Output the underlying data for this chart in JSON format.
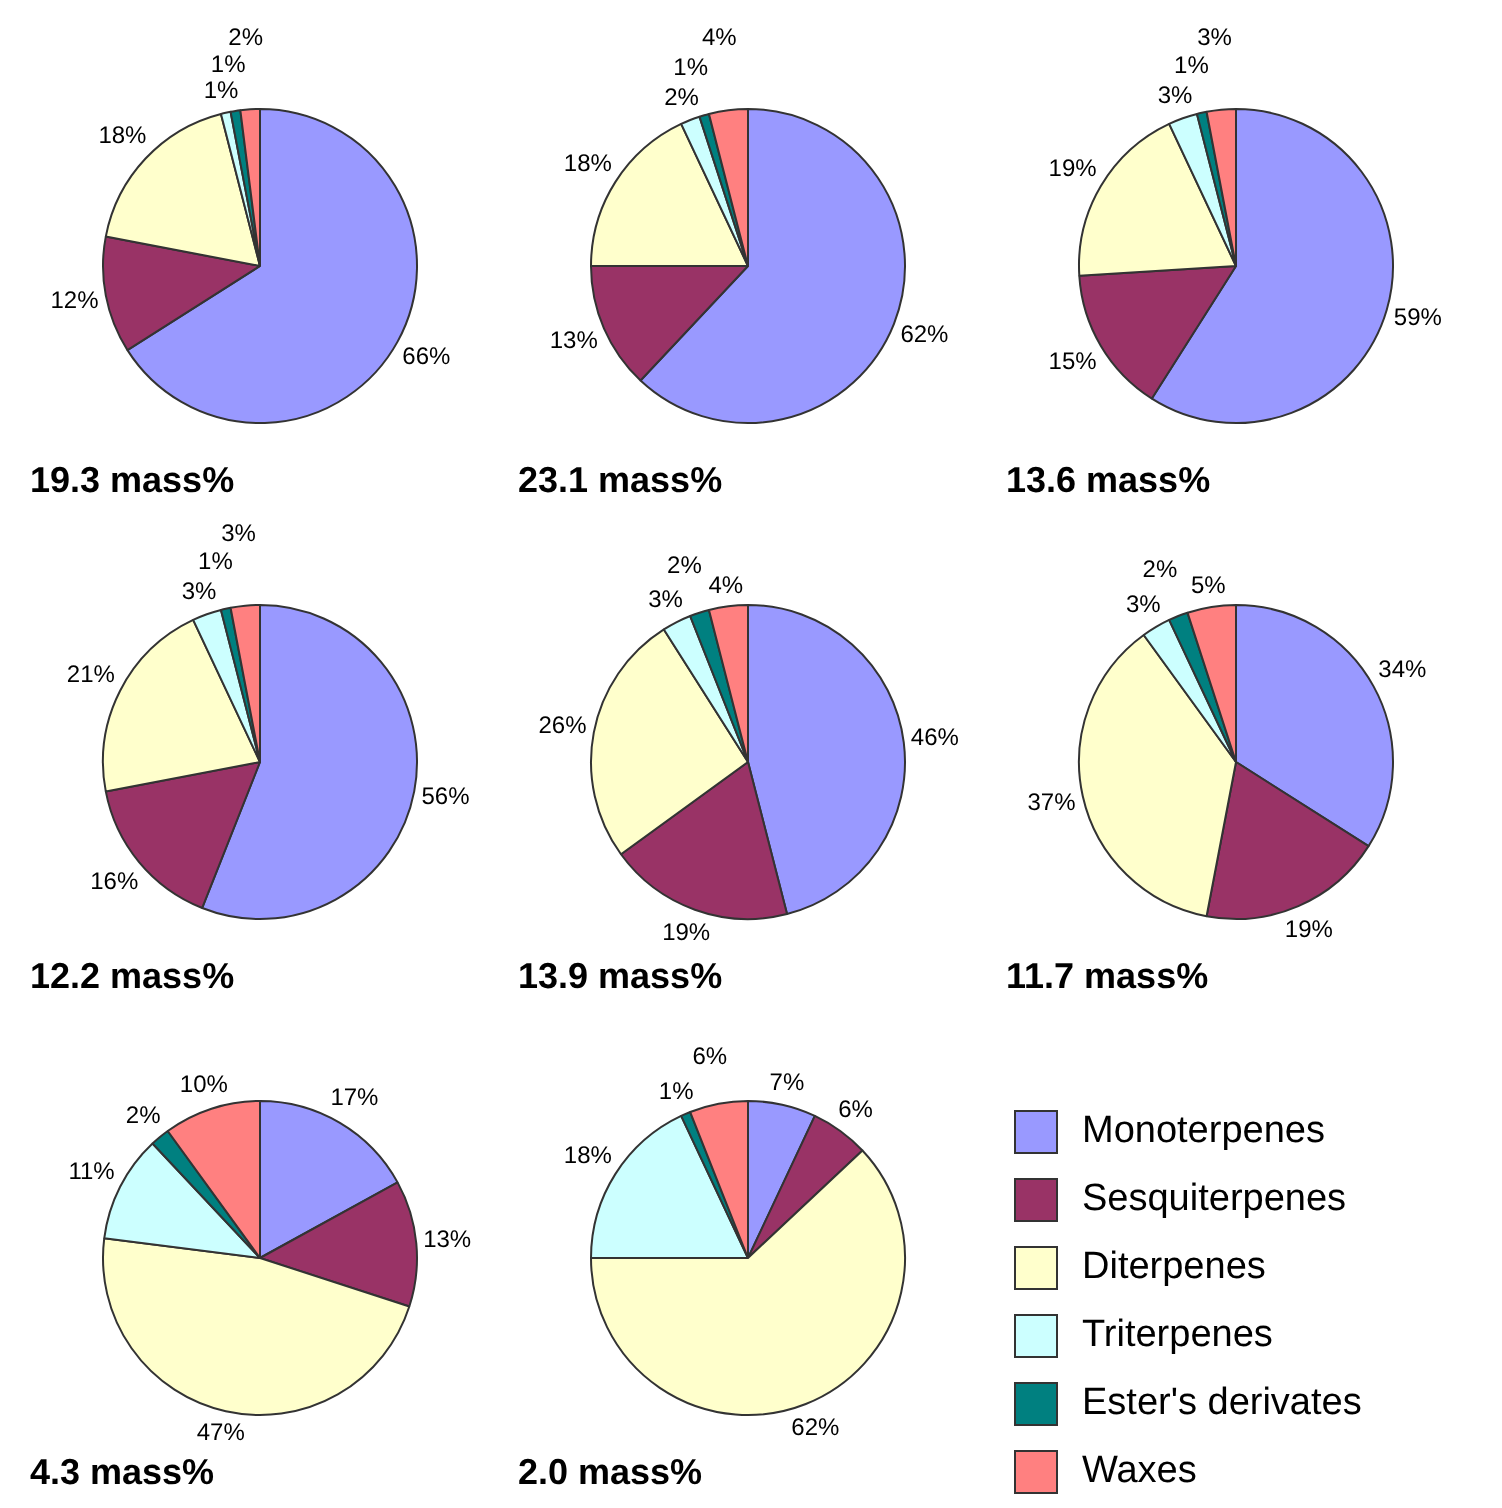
{
  "chart_data": [
    {
      "type": "pie",
      "title": "19.3 mass%",
      "values": [
        66,
        12,
        18,
        1,
        1,
        2
      ],
      "value_labels": [
        "66%",
        "12%",
        "18%",
        "1%",
        "1%",
        "2%"
      ],
      "colors": [
        "#9999ff",
        "#993366",
        "#ffffcc",
        "#ccffff",
        "#008080",
        "#ff8080"
      ]
    },
    {
      "type": "pie",
      "title": "23.1 mass%",
      "values": [
        62,
        13,
        18,
        2,
        1,
        4
      ],
      "value_labels": [
        "62%",
        "13%",
        "18%",
        "2%",
        "1%",
        "4%"
      ],
      "colors": [
        "#9999ff",
        "#993366",
        "#ffffcc",
        "#ccffff",
        "#008080",
        "#ff8080"
      ]
    },
    {
      "type": "pie",
      "title": "13.6 mass%",
      "values": [
        59,
        15,
        19,
        3,
        1,
        3
      ],
      "value_labels": [
        "59%",
        "15%",
        "19%",
        "3%",
        "1%",
        "3%"
      ],
      "colors": [
        "#9999ff",
        "#993366",
        "#ffffcc",
        "#ccffff",
        "#008080",
        "#ff8080"
      ]
    },
    {
      "type": "pie",
      "title": "12.2 mass%",
      "values": [
        56,
        16,
        21,
        3,
        1,
        3
      ],
      "value_labels": [
        "56%",
        "16%",
        "21%",
        "3%",
        "1%",
        "3%"
      ],
      "colors": [
        "#9999ff",
        "#993366",
        "#ffffcc",
        "#ccffff",
        "#008080",
        "#ff8080"
      ]
    },
    {
      "type": "pie",
      "title": "13.9 mass%",
      "values": [
        46,
        19,
        26,
        3,
        2,
        4
      ],
      "value_labels": [
        "46%",
        "19%",
        "26%",
        "3%",
        "2%",
        "4%"
      ],
      "colors": [
        "#9999ff",
        "#993366",
        "#ffffcc",
        "#ccffff",
        "#008080",
        "#ff8080"
      ]
    },
    {
      "type": "pie",
      "title": "11.7 mass%",
      "values": [
        34,
        19,
        37,
        3,
        2,
        5
      ],
      "value_labels": [
        "34%",
        "19%",
        "37%",
        "3%",
        "2%",
        "5%"
      ],
      "colors": [
        "#9999ff",
        "#993366",
        "#ffffcc",
        "#ccffff",
        "#008080",
        "#ff8080"
      ]
    },
    {
      "type": "pie",
      "title": "4.3 mass%",
      "values": [
        17,
        13,
        47,
        11,
        2,
        10
      ],
      "value_labels": [
        "17%",
        "13%",
        "47%",
        "11%",
        "2%",
        "10%"
      ],
      "colors": [
        "#9999ff",
        "#993366",
        "#ffffcc",
        "#ccffff",
        "#008080",
        "#ff8080"
      ]
    },
    {
      "type": "pie",
      "title": "2.0 mass%",
      "categories": [
        "Monoterpenes",
        "Sesquiterpenes",
        "Diterpenes",
        "Triterpenes",
        "Ester's derivates",
        "Waxes"
      ],
      "values": [
        7,
        6,
        62,
        18,
        1,
        6
      ],
      "value_labels": [
        "7%",
        "6%",
        "62%",
        "18%",
        "1%",
        "6%"
      ],
      "colors": [
        "#9999ff",
        "#993366",
        "#ffffcc",
        "#ccffff",
        "#008080",
        "#ff8080"
      ],
      "legend": "right"
    }
  ]
}
